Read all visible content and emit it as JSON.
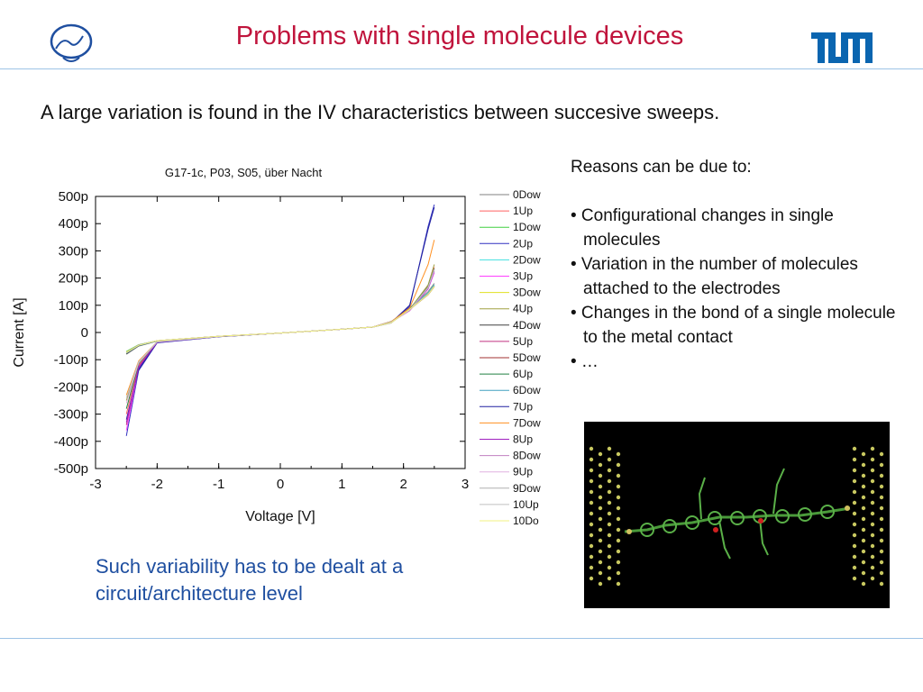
{
  "slide": {
    "title": "Problems with single molecule devices",
    "subtitle": "A large variation is found in the IV characteristics between succesive sweeps.",
    "reasons": {
      "heading": "Reasons can be due to:",
      "items": [
        "• Configurational changes in single molecules",
        "• Variation in the number of molecules attached to the electrodes",
        "• Changes in the bond of a single molecule to the metal contact",
        "•  …"
      ]
    },
    "conclusion": "Such variability has to be dealt at a circuit/architecture level",
    "logos": {
      "left": "nano-logo",
      "right": "TUM"
    },
    "colors": {
      "title": "#c0143c",
      "conclusion": "#1f4fa0",
      "tum_blue": "#0a65b0",
      "rule": "#9dc3e6"
    }
  },
  "chart_data": {
    "type": "line",
    "title": "G17-1c, P03, S05, über Nacht",
    "xlabel": "Voltage [V]",
    "ylabel": "Current [A]",
    "xlim": [
      -3,
      3
    ],
    "ylim": [
      -500,
      500
    ],
    "y_unit_suffix": "p",
    "x_ticks": [
      -3,
      -2,
      -1,
      0,
      1,
      2,
      3
    ],
    "y_ticks": [
      500,
      400,
      300,
      200,
      100,
      0,
      -100,
      -200,
      -300,
      -400,
      -500
    ],
    "x_tick_labels": [
      "-3",
      "-2",
      "-1",
      "0",
      "1",
      "2",
      "3"
    ],
    "y_tick_labels": [
      "500p",
      "400p",
      "300p",
      "200p",
      "100p",
      "0",
      "-100p",
      "-200p",
      "-300p",
      "-400p",
      "-500p"
    ],
    "grid": false,
    "legend_position": "right",
    "series": [
      {
        "name": "0Dow",
        "color": "#808080",
        "x": [
          -2.5,
          -2.3,
          -2.0,
          -1.0,
          0,
          1.0,
          1.5,
          1.8,
          2.1,
          2.4,
          2.5
        ],
        "y": [
          -80,
          -50,
          -32,
          -15,
          -2,
          12,
          20,
          40,
          90,
          150,
          180
        ]
      },
      {
        "name": "1Up",
        "color": "#ff6060",
        "x": [
          -2.5,
          -2.3,
          -2.0,
          -1.0,
          0,
          1.0,
          1.5,
          1.8,
          2.1,
          2.4,
          2.5
        ],
        "y": [
          -300,
          -120,
          -35,
          -15,
          -2,
          12,
          20,
          40,
          80,
          170,
          240
        ]
      },
      {
        "name": "1Dow",
        "color": "#40d040",
        "x": [
          -2.5,
          -2.3,
          -2.0,
          -1.0,
          0,
          1.0,
          1.5,
          1.8,
          2.1,
          2.4,
          2.5
        ],
        "y": [
          -70,
          -45,
          -30,
          -14,
          -2,
          12,
          20,
          38,
          85,
          140,
          170
        ]
      },
      {
        "name": "2Up",
        "color": "#3030c0",
        "x": [
          -2.5,
          -2.3,
          -2.0,
          -1.0,
          0,
          1.0,
          1.5,
          1.8,
          2.1,
          2.4,
          2.5
        ],
        "y": [
          -380,
          -140,
          -38,
          -16,
          -2,
          12,
          20,
          35,
          95,
          390,
          470
        ]
      },
      {
        "name": "2Dow",
        "color": "#40e0e0",
        "x": [
          -2.5,
          -2.3,
          -2.0,
          -1.0,
          0,
          1.0,
          1.5,
          1.8,
          2.1,
          2.4,
          2.5
        ],
        "y": [
          -75,
          -48,
          -31,
          -15,
          -2,
          12,
          20,
          38,
          88,
          145,
          175
        ]
      },
      {
        "name": "3Up",
        "color": "#ff40ff",
        "x": [
          -2.5,
          -2.3,
          -2.0,
          -1.0,
          0,
          1.0,
          1.5,
          1.8,
          2.1,
          2.4,
          2.5
        ],
        "y": [
          -360,
          -130,
          -36,
          -15,
          -2,
          12,
          20,
          38,
          80,
          160,
          220
        ]
      },
      {
        "name": "3Dow",
        "color": "#e0e020",
        "x": [
          -2.5,
          -2.3,
          -2.0,
          -1.0,
          0,
          1.0,
          1.5,
          1.8,
          2.1,
          2.4,
          2.5
        ],
        "y": [
          -72,
          -47,
          -30,
          -14,
          -2,
          12,
          20,
          36,
          84,
          138,
          168
        ]
      },
      {
        "name": "4Up",
        "color": "#a0a040",
        "x": [
          -2.5,
          -2.3,
          -2.0,
          -1.0,
          0,
          1.0,
          1.5,
          1.8,
          2.1,
          2.4,
          2.5
        ],
        "y": [
          -250,
          -110,
          -35,
          -15,
          -2,
          12,
          20,
          40,
          85,
          175,
          250
        ]
      },
      {
        "name": "4Dow",
        "color": "#404040",
        "x": [
          -2.5,
          -2.3,
          -2.0,
          -1.0,
          0,
          1.0,
          1.5,
          1.8,
          2.1,
          2.4,
          2.5
        ],
        "y": [
          -78,
          -49,
          -31,
          -15,
          -2,
          12,
          20,
          37,
          86,
          142,
          172
        ]
      },
      {
        "name": "5Up",
        "color": "#c03080",
        "x": [
          -2.5,
          -2.3,
          -2.0,
          -1.0,
          0,
          1.0,
          1.5,
          1.8,
          2.1,
          2.4,
          2.5
        ],
        "y": [
          -340,
          -125,
          -36,
          -15,
          -2,
          12,
          20,
          38,
          82,
          165,
          230
        ]
      },
      {
        "name": "5Dow",
        "color": "#a03030",
        "x": [
          -2.5,
          -2.3,
          -2.0,
          -1.0,
          0,
          1.0,
          1.5,
          1.8,
          2.1,
          2.4,
          2.5
        ],
        "y": [
          -74,
          -47,
          -30,
          -14,
          -2,
          12,
          20,
          37,
          85,
          140,
          170
        ]
      },
      {
        "name": "6Up",
        "color": "#208040",
        "x": [
          -2.5,
          -2.3,
          -2.0,
          -1.0,
          0,
          1.0,
          1.5,
          1.8,
          2.1,
          2.4,
          2.5
        ],
        "y": [
          -280,
          -115,
          -35,
          -15,
          -2,
          12,
          20,
          38,
          84,
          168,
          235
        ]
      },
      {
        "name": "6Dow",
        "color": "#40a0c0",
        "x": [
          -2.5,
          -2.3,
          -2.0,
          -1.0,
          0,
          1.0,
          1.5,
          1.8,
          2.1,
          2.4,
          2.5
        ],
        "y": [
          -76,
          -48,
          -31,
          -15,
          -2,
          12,
          20,
          36,
          86,
          143,
          173
        ]
      },
      {
        "name": "7Up",
        "color": "#2020a0",
        "x": [
          -2.5,
          -2.3,
          -2.0,
          -1.0,
          0,
          1.0,
          1.5,
          1.8,
          2.1,
          2.4,
          2.5
        ],
        "y": [
          -320,
          -135,
          -37,
          -16,
          -2,
          12,
          20,
          36,
          100,
          380,
          460
        ]
      },
      {
        "name": "7Dow",
        "color": "#ff9020",
        "x": [
          -2.5,
          -2.3,
          -2.0,
          -1.0,
          0,
          1.0,
          1.5,
          1.8,
          2.1,
          2.4,
          2.5
        ],
        "y": [
          -230,
          -105,
          -34,
          -15,
          -2,
          12,
          20,
          39,
          90,
          250,
          340
        ]
      },
      {
        "name": "8Up",
        "color": "#a020c0",
        "x": [
          -2.5,
          -2.3,
          -2.0,
          -1.0,
          0,
          1.0,
          1.5,
          1.8,
          2.1,
          2.4,
          2.5
        ],
        "y": [
          -330,
          -128,
          -36,
          -15,
          -2,
          12,
          20,
          38,
          81,
          162,
          225
        ]
      },
      {
        "name": "8Dow",
        "color": "#c080c0",
        "x": [
          -2.5,
          -2.3,
          -2.0,
          -1.0,
          0,
          1.0,
          1.5,
          1.8,
          2.1,
          2.4,
          2.5
        ],
        "y": [
          -73,
          -46,
          -30,
          -14,
          -2,
          12,
          20,
          36,
          84,
          139,
          169
        ]
      },
      {
        "name": "9Up",
        "color": "#e0b0e0",
        "x": [
          -2.5,
          -2.3,
          -2.0,
          -1.0,
          0,
          1.0,
          1.5,
          1.8,
          2.1,
          2.4,
          2.5
        ],
        "y": [
          -260,
          -112,
          -35,
          -15,
          -2,
          12,
          20,
          38,
          83,
          166,
          232
        ]
      },
      {
        "name": "9Dow",
        "color": "#b0b0b0",
        "x": [
          -2.5,
          -2.3,
          -2.0,
          -1.0,
          0,
          1.0,
          1.5,
          1.8,
          2.1,
          2.4,
          2.5
        ],
        "y": [
          -75,
          -47,
          -30,
          -14,
          -2,
          12,
          20,
          36,
          85,
          141,
          171
        ]
      },
      {
        "name": "10Up",
        "color": "#c0c0c0",
        "x": [
          -2.5,
          -2.3,
          -2.0,
          -1.0,
          0,
          1.0,
          1.5,
          1.8,
          2.1,
          2.4,
          2.5
        ],
        "y": [
          -240,
          -108,
          -34,
          -15,
          -2,
          12,
          20,
          38,
          82,
          164,
          228
        ]
      },
      {
        "name": "10Do",
        "color": "#f0f080",
        "x": [
          -2.5,
          -2.3,
          -2.0,
          -1.0,
          0,
          1.0,
          1.5,
          1.8,
          2.1,
          2.4,
          2.5
        ],
        "y": [
          -74,
          -47,
          -30,
          -14,
          -2,
          12,
          20,
          36,
          85,
          140,
          170
        ]
      }
    ]
  }
}
